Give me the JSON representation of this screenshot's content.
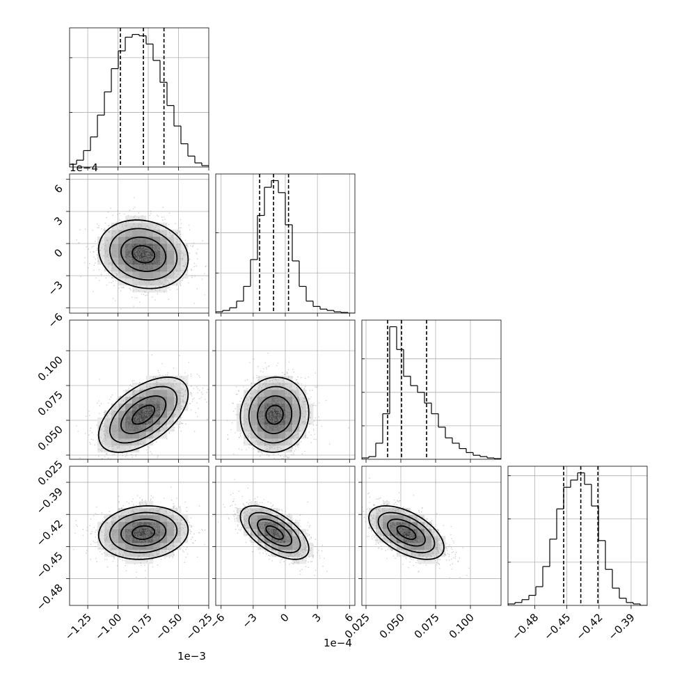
{
  "chart_data": {
    "type": "corner",
    "parameters": [
      {
        "range": [
          -1.4,
          -0.25
        ],
        "ticks": [
          -1.25,
          -1.0,
          -0.75,
          -0.5,
          -0.25
        ],
        "tick_labels": [
          "−1.25",
          "−1.00",
          "−0.75",
          "−0.50",
          "−0.25"
        ],
        "offset_label": "1e−3",
        "quantiles": [
          -0.98,
          -0.79,
          -0.62
        ],
        "hist_edges_range": [
          -1.4,
          -0.25
        ],
        "hist_counts": [
          0.02,
          0.05,
          0.12,
          0.22,
          0.38,
          0.55,
          0.72,
          0.85,
          0.95,
          0.97,
          0.96,
          0.9,
          0.78,
          0.62,
          0.45,
          0.3,
          0.17,
          0.08,
          0.03,
          0.01
        ],
        "hist_yticks": [
          0.4,
          0.8
        ]
      },
      {
        "range": [
          -6.5,
          6.5
        ],
        "ticks": [
          -6,
          -3,
          0,
          3,
          6
        ],
        "tick_labels": [
          "−6",
          "−3",
          "0",
          "3",
          "6"
        ],
        "offset_label": "1e−4",
        "quantiles": [
          -2.4,
          -1.1,
          0.3
        ],
        "hist_edges_range": [
          -6.5,
          6.5
        ],
        "hist_counts": [
          0.01,
          0.02,
          0.04,
          0.09,
          0.2,
          0.4,
          0.73,
          0.94,
          0.99,
          0.9,
          0.66,
          0.39,
          0.2,
          0.09,
          0.05,
          0.03,
          0.02,
          0.01,
          0.005,
          0.0
        ],
        "hist_yticks": [
          0.3,
          0.6
        ]
      },
      {
        "range": [
          0.022,
          0.122
        ],
        "ticks": [
          0.025,
          0.05,
          0.075,
          0.1
        ],
        "tick_labels": [
          "0.025",
          "0.050",
          "0.075",
          "0.100"
        ],
        "left_tick_labels": [
          "0.025",
          "0.050",
          "0.075",
          "0.100"
        ],
        "quantiles": [
          0.0405,
          0.0505,
          0.0685
        ],
        "hist_edges_range": [
          0.022,
          0.122
        ],
        "hist_counts": [
          0.01,
          0.02,
          0.12,
          0.34,
          0.99,
          0.82,
          0.62,
          0.55,
          0.5,
          0.42,
          0.34,
          0.24,
          0.16,
          0.12,
          0.08,
          0.05,
          0.03,
          0.02,
          0.01,
          0.005
        ],
        "hist_yticks": [
          0.25,
          0.5,
          0.75
        ]
      },
      {
        "range": [
          -0.505,
          -0.375
        ],
        "ticks": [
          -0.48,
          -0.45,
          -0.42,
          -0.39
        ],
        "tick_labels": [
          "−0.48",
          "−0.45",
          "−0.42",
          "−0.39"
        ],
        "quantiles": [
          -0.453,
          -0.437,
          -0.421
        ],
        "hist_edges_range": [
          -0.505,
          -0.375
        ],
        "hist_counts": [
          0.01,
          0.02,
          0.04,
          0.07,
          0.13,
          0.27,
          0.46,
          0.67,
          0.82,
          0.87,
          0.92,
          0.84,
          0.69,
          0.45,
          0.25,
          0.12,
          0.05,
          0.02,
          0.01,
          0.0
        ],
        "hist_yticks": [
          0.3,
          0.6,
          0.9
        ]
      }
    ],
    "distribution": {
      "means": [
        -0.79,
        -1.0,
        0.054,
        -0.437
      ],
      "sds": [
        0.185,
        1.6,
        0.0135,
        0.0125
      ],
      "correlations": [
        [
          1.0,
          -0.15,
          0.55,
          0.1
        ],
        [
          -0.15,
          1.0,
          0.05,
          -0.6
        ],
        [
          0.55,
          0.05,
          1.0,
          -0.55
        ],
        [
          0.1,
          -0.6,
          -0.55,
          1.0
        ]
      ]
    },
    "contour_levels_sigma": [
      0.5,
      1.0,
      1.5,
      2.0
    ],
    "grid": true
  }
}
